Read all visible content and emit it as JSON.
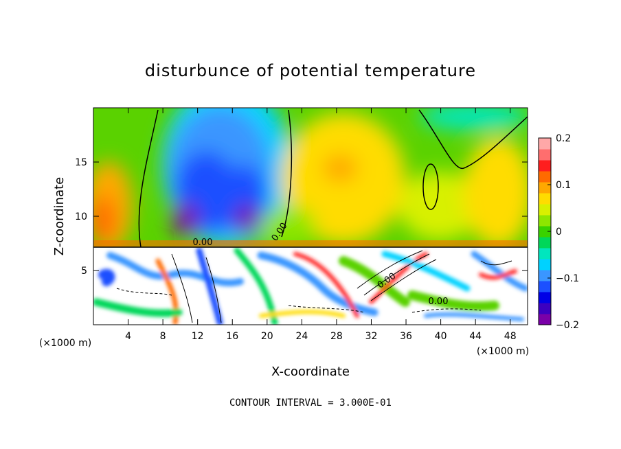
{
  "chart_data": {
    "type": "heatmap",
    "title": "disturbunce of potential temperature",
    "xlabel": "X-coordinate",
    "ylabel": "Z-coordinate",
    "x_unit": "(×1000 m)",
    "x_ticks": [
      4,
      8,
      12,
      16,
      20,
      24,
      28,
      32,
      36,
      40,
      44,
      48
    ],
    "y_ticks": [
      5,
      10,
      15
    ],
    "xlim": [
      0,
      50
    ],
    "ylim": [
      0,
      20
    ],
    "colorbar": {
      "range": [
        -0.2,
        0.2
      ],
      "tick_labels": [
        "0.2",
        "0.1",
        "0",
        "−0.1",
        "−0.2"
      ],
      "tick_values": [
        0.2,
        0.1,
        0,
        -0.1,
        -0.2
      ],
      "colors": [
        "#7a00a8",
        "#3c00c0",
        "#0000e6",
        "#1c50ff",
        "#3a96ff",
        "#00d2ff",
        "#00e6be",
        "#00d75a",
        "#39d200",
        "#8ee600",
        "#d8f000",
        "#ffdc00",
        "#ffa800",
        "#ff6a00",
        "#ff1e1e",
        "#ff6e6e",
        "#ffa8a8"
      ]
    },
    "contour_labels": [
      "0.00",
      "0.00",
      "0.00",
      "0.00"
    ],
    "contour_interval_text": "CONTOUR INTERVAL = 3.000E-01"
  }
}
